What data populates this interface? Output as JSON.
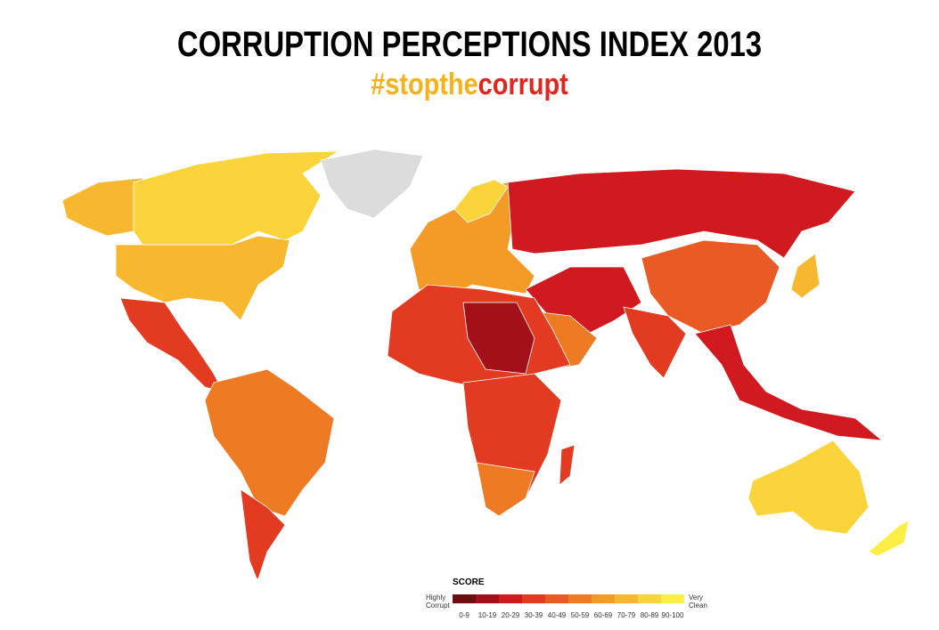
{
  "header": {
    "title": "CORRUPTION PERCEPTIONS INDEX 2013",
    "hashtag_part1": "#stopthe",
    "hashtag_part2": "corrupt"
  },
  "legend": {
    "title": "SCORE",
    "low_label": "Highly Corrupt",
    "high_label": "Very Clean",
    "bins": [
      {
        "label": "0-9",
        "color": "#6e0e10"
      },
      {
        "label": "10-19",
        "color": "#a3101a"
      },
      {
        "label": "20-29",
        "color": "#d01a1f"
      },
      {
        "label": "30-39",
        "color": "#e23b22"
      },
      {
        "label": "40-49",
        "color": "#ea5a25"
      },
      {
        "label": "50-59",
        "color": "#ef7a24"
      },
      {
        "label": "60-69",
        "color": "#f39a27"
      },
      {
        "label": "70-79",
        "color": "#f7b82f"
      },
      {
        "label": "80-89",
        "color": "#fad43a"
      },
      {
        "label": "90-100",
        "color": "#fdee45"
      }
    ]
  }
}
